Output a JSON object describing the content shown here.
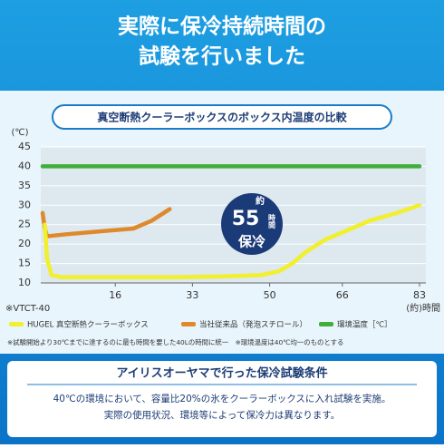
{
  "header": {
    "title_lines": [
      "実際に保冷持続時間の",
      "試験を行いました"
    ]
  },
  "chart_data": {
    "type": "line",
    "title": "真空断熱クーラーボックスのボックス内温度の比較",
    "y_label": "(℃)",
    "x_label": "(約)時間",
    "model_note": "※VTCT-40",
    "xlim": [
      0,
      83
    ],
    "xticks": [
      16,
      33,
      50,
      66,
      83
    ],
    "ylim": [
      10,
      45
    ],
    "yticks": [
      10,
      15,
      20,
      25,
      30,
      35,
      40,
      45
    ],
    "grid": true,
    "annotation": [
      "約",
      "55",
      "時間",
      "保冷"
    ],
    "series": [
      {
        "name": "HUGEL 真空断熱クーラーボックス",
        "color": "#f2ef2c",
        "x": [
          0.5,
          1,
          2,
          4,
          10,
          20,
          30,
          40,
          48,
          52,
          55,
          58,
          62,
          66,
          72,
          78,
          83
        ],
        "values": [
          25,
          16,
          12,
          11.5,
          11.5,
          11.5,
          11.5,
          11.7,
          12,
          13,
          15,
          18,
          21,
          23,
          26,
          28,
          30
        ]
      },
      {
        "name": "当社従来品（発泡スチロール）",
        "color": "#de8a2c",
        "x": [
          0,
          0.5,
          1,
          5,
          10,
          15,
          20,
          24,
          28
        ],
        "values": [
          28,
          24,
          22,
          22.5,
          23,
          23.5,
          24,
          26,
          29
        ]
      },
      {
        "name": "環境温度［℃］",
        "color": "#3fae3a",
        "x": [
          0,
          83
        ],
        "values": [
          40,
          40
        ]
      }
    ],
    "footnote": "※試験開始より30℃までに達するのに最も時間を要した40Lの時間に統一　※環境温度は40℃均一のものとする"
  },
  "conditions": {
    "title": "アイリスオーヤマで行った保冷試験条件",
    "lines": [
      "40℃の環境において、容量比20%の氷をクーラーボックスに入れ試験を実施。",
      "実際の使用状況、環境等によって保冷力は異なります。"
    ]
  }
}
